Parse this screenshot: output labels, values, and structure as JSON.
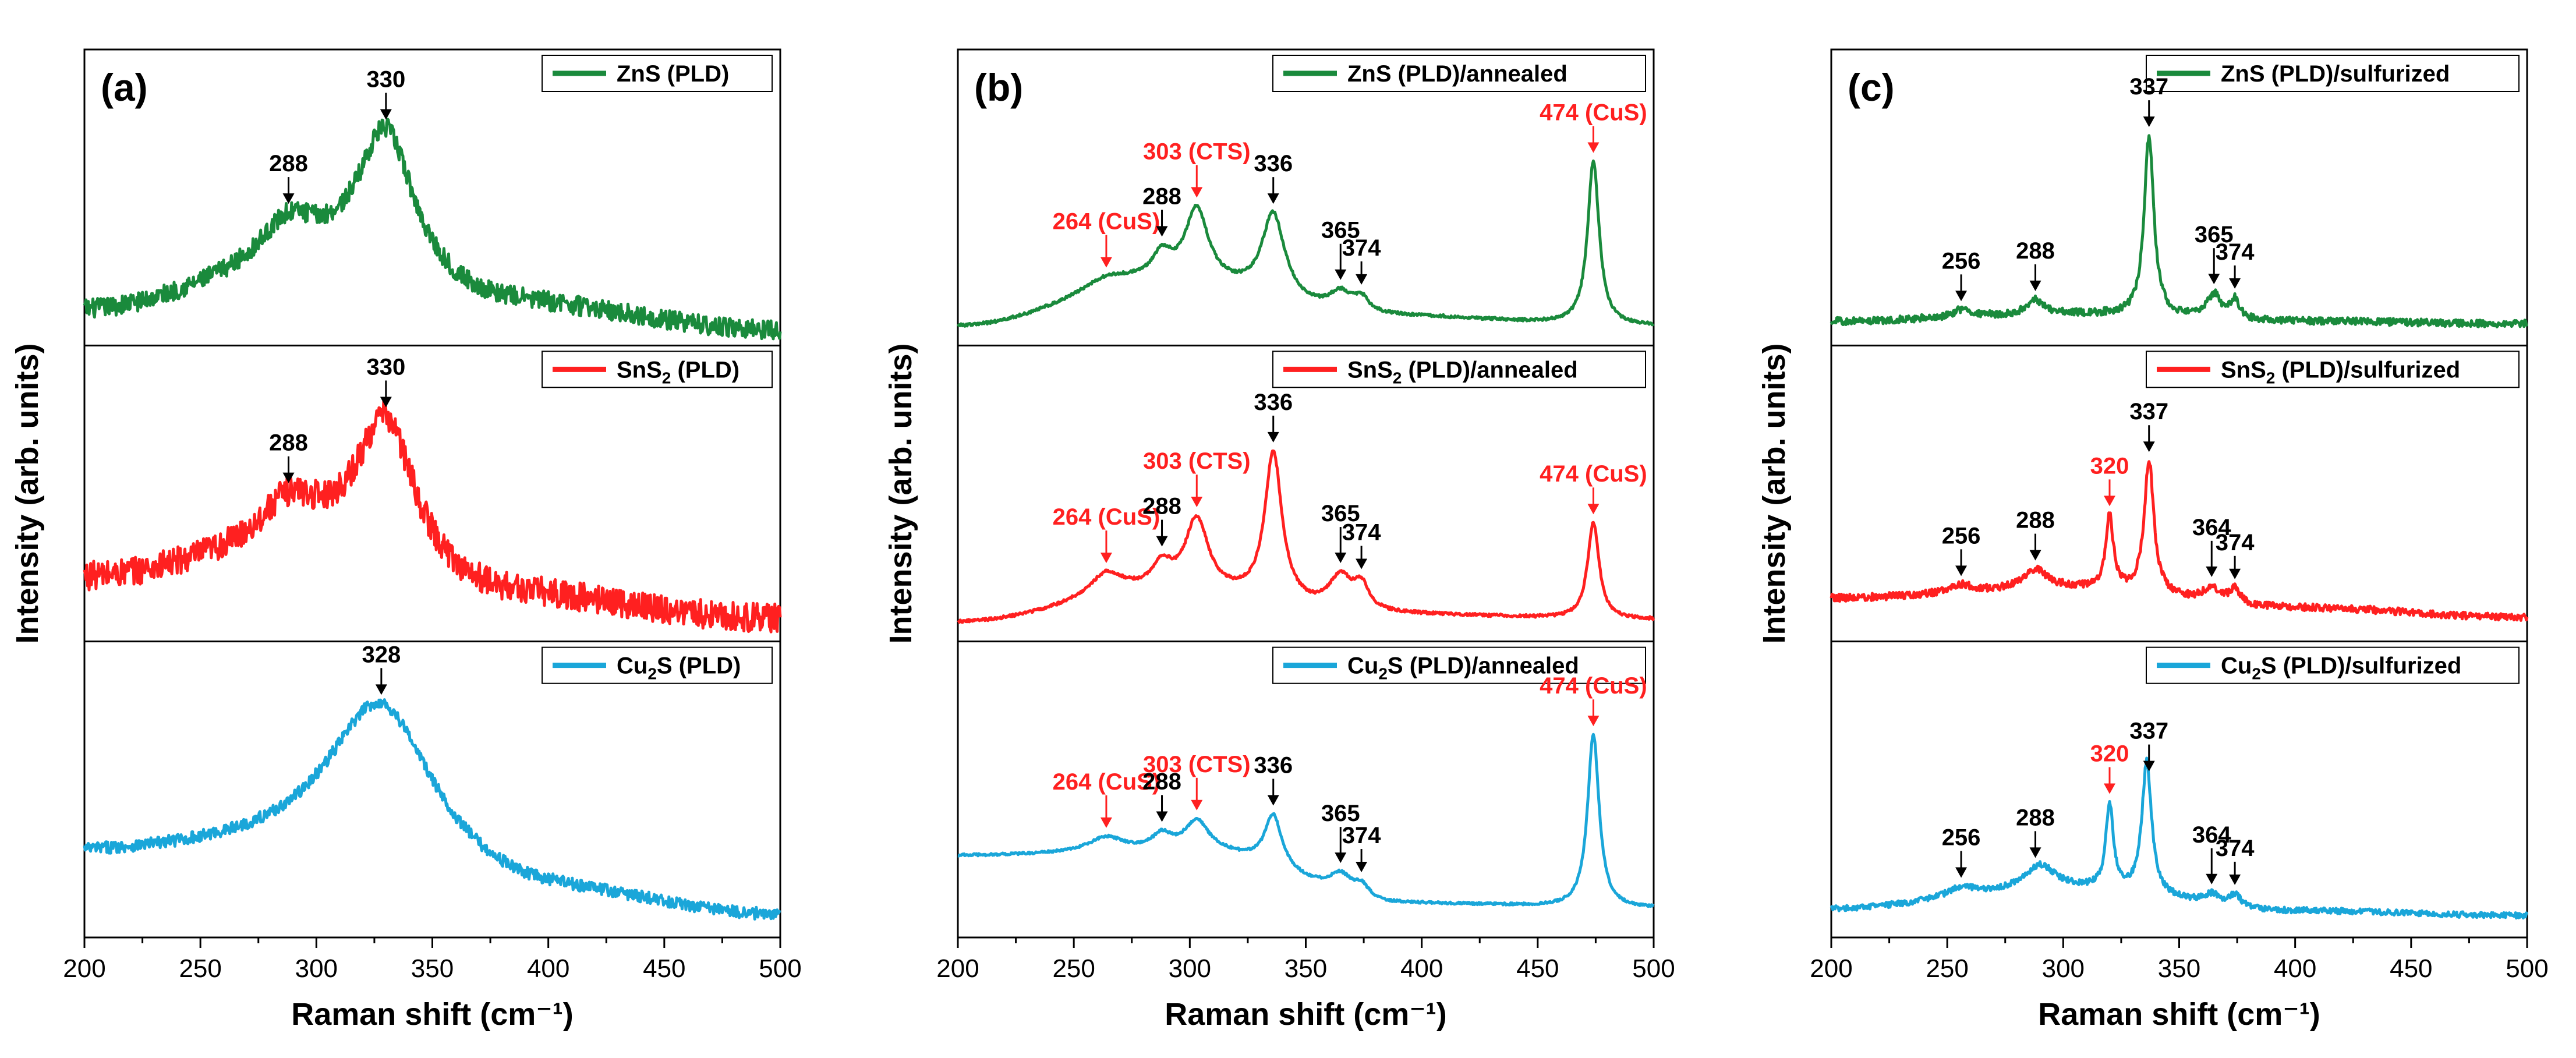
{
  "figure": {
    "xlabel": "Raman shift (cm⁻¹)",
    "ylabel": "Intensity (arb. units)",
    "x_ticks": [
      "200",
      "250",
      "300",
      "350",
      "400",
      "450",
      "500"
    ]
  },
  "colors": {
    "ZnS": "#1a8a3c",
    "SnS2": "#ff2020",
    "Cu2S": "#1aa6d9",
    "red_annotation": "#ff2020",
    "black_annotation": "#000000"
  },
  "chart_data": [
    {
      "type": "line",
      "panel": "(a)",
      "xlim": [
        200,
        500
      ],
      "xlabel": "Raman shift (cm⁻¹)",
      "ylabel": "Intensity (arb. units)",
      "subplots": [
        {
          "legend": "ZnS (PLD)",
          "legend_main": "ZnS",
          "legend_sub": "",
          "legend_tail": " (PLD)",
          "color_key": "ZnS",
          "peaks": [
            {
              "x": 288,
              "w": 30,
              "h": 0.18
            },
            {
              "x": 330,
              "w": 30,
              "h": 0.62
            }
          ],
          "baseline": [
            [
              200,
              0.08
            ],
            [
              300,
              0.25
            ],
            [
              380,
              0.1
            ],
            [
              500,
              0.0
            ]
          ],
          "noise": 0.04,
          "annotations": [
            {
              "label": "288",
              "x": 288,
              "color": "black"
            },
            {
              "label": "330",
              "x": 330,
              "color": "black"
            }
          ]
        },
        {
          "legend": "SnS2 (PLD)",
          "legend_main": "SnS",
          "legend_sub": "2",
          "legend_tail": " (PLD)",
          "color_key": "SnS2",
          "peaks": [
            {
              "x": 288,
              "w": 30,
              "h": 0.18
            },
            {
              "x": 330,
              "w": 30,
              "h": 0.6
            }
          ],
          "baseline": [
            [
              200,
              0.2
            ],
            [
              300,
              0.32
            ],
            [
              380,
              0.12
            ],
            [
              500,
              0.03
            ]
          ],
          "noise": 0.06,
          "annotations": [
            {
              "label": "288",
              "x": 288,
              "color": "black"
            },
            {
              "label": "330",
              "x": 330,
              "color": "black"
            }
          ]
        },
        {
          "legend": "Cu2S (PLD)",
          "legend_main": "Cu",
          "legend_sub": "2",
          "legend_tail": "S (PLD)",
          "color_key": "Cu2S",
          "peaks": [
            {
              "x": 328,
              "w": 55,
              "h": 0.65
            }
          ],
          "baseline": [
            [
              200,
              0.28
            ],
            [
              300,
              0.3
            ],
            [
              400,
              0.1
            ],
            [
              500,
              0.02
            ]
          ],
          "noise": 0.025,
          "annotations": [
            {
              "label": "328",
              "x": 328,
              "color": "black"
            }
          ]
        }
      ]
    },
    {
      "type": "line",
      "panel": "(b)",
      "xlim": [
        200,
        500
      ],
      "xlabel": "Raman shift (cm⁻¹)",
      "ylabel": "Intensity (arb. units)",
      "subplots": [
        {
          "legend": "ZnS (PLD)/annealed",
          "legend_main": "ZnS",
          "legend_sub": "",
          "legend_tail": " (PLD)/annealed",
          "color_key": "ZnS",
          "peaks": [
            {
              "x": 264,
              "w": 25,
              "h": 0.05
            },
            {
              "x": 288,
              "w": 10,
              "h": 0.1
            },
            {
              "x": 303,
              "w": 12,
              "h": 0.3
            },
            {
              "x": 336,
              "w": 12,
              "h": 0.35
            },
            {
              "x": 365,
              "w": 12,
              "h": 0.08
            },
            {
              "x": 374,
              "w": 8,
              "h": 0.06
            },
            {
              "x": 474,
              "w": 6,
              "h": 0.68
            }
          ],
          "baseline": [
            [
              200,
              0.02
            ],
            [
              290,
              0.2
            ],
            [
              380,
              0.06
            ],
            [
              500,
              0.02
            ]
          ],
          "noise": 0.006,
          "annotations": [
            {
              "label": "264 (CuS)",
              "x": 264,
              "color": "red"
            },
            {
              "label": "288",
              "x": 288,
              "color": "black"
            },
            {
              "label": "303 (CTS)",
              "x": 303,
              "color": "red"
            },
            {
              "label": "336",
              "x": 336,
              "color": "black"
            },
            {
              "label": "365",
              "x": 365,
              "color": "black"
            },
            {
              "label": "374",
              "x": 374,
              "color": "black"
            },
            {
              "label": "474 (CuS)",
              "x": 474,
              "color": "red"
            }
          ]
        },
        {
          "legend": "SnS2 (PLD)/annealed",
          "legend_main": "SnS",
          "legend_sub": "2",
          "legend_tail": " (PLD)/annealed",
          "color_key": "SnS2",
          "peaks": [
            {
              "x": 264,
              "w": 18,
              "h": 0.1
            },
            {
              "x": 288,
              "w": 10,
              "h": 0.1
            },
            {
              "x": 303,
              "w": 12,
              "h": 0.3
            },
            {
              "x": 336,
              "w": 9,
              "h": 0.62
            },
            {
              "x": 365,
              "w": 12,
              "h": 0.14
            },
            {
              "x": 374,
              "w": 8,
              "h": 0.1
            },
            {
              "x": 474,
              "w": 6,
              "h": 0.4
            }
          ],
          "baseline": [
            [
              200,
              0.02
            ],
            [
              290,
              0.14
            ],
            [
              380,
              0.05
            ],
            [
              500,
              0.03
            ]
          ],
          "noise": 0.006,
          "annotations": [
            {
              "label": "264 (CuS)",
              "x": 264,
              "color": "red"
            },
            {
              "label": "288",
              "x": 288,
              "color": "black"
            },
            {
              "label": "303 (CTS)",
              "x": 303,
              "color": "red"
            },
            {
              "label": "336",
              "x": 336,
              "color": "black"
            },
            {
              "label": "365",
              "x": 365,
              "color": "black"
            },
            {
              "label": "374",
              "x": 374,
              "color": "black"
            },
            {
              "label": "474 (CuS)",
              "x": 474,
              "color": "red"
            }
          ]
        },
        {
          "legend": "Cu2S (PLD)/annealed",
          "legend_main": "Cu",
          "legend_sub": "2",
          "legend_tail": "S (PLD)/annealed",
          "color_key": "Cu2S",
          "peaks": [
            {
              "x": 264,
              "w": 18,
              "h": 0.06
            },
            {
              "x": 288,
              "w": 10,
              "h": 0.06
            },
            {
              "x": 303,
              "w": 12,
              "h": 0.12
            },
            {
              "x": 336,
              "w": 9,
              "h": 0.22
            },
            {
              "x": 365,
              "w": 12,
              "h": 0.08
            },
            {
              "x": 374,
              "w": 8,
              "h": 0.05
            },
            {
              "x": 474,
              "w": 6,
              "h": 0.72
            }
          ],
          "baseline": [
            [
              200,
              0.28
            ],
            [
              300,
              0.3
            ],
            [
              390,
              0.08
            ],
            [
              500,
              0.06
            ]
          ],
          "noise": 0.005,
          "annotations": [
            {
              "label": "264 (CuS)",
              "x": 264,
              "color": "red"
            },
            {
              "label": "288",
              "x": 288,
              "color": "black"
            },
            {
              "label": "303 (CTS)",
              "x": 303,
              "color": "red"
            },
            {
              "label": "336",
              "x": 336,
              "color": "black"
            },
            {
              "label": "365",
              "x": 365,
              "color": "black"
            },
            {
              "label": "374",
              "x": 374,
              "color": "black"
            },
            {
              "label": "474 (CuS)",
              "x": 474,
              "color": "red"
            }
          ]
        }
      ]
    },
    {
      "type": "line",
      "panel": "(c)",
      "xlim": [
        200,
        500
      ],
      "xlabel": "Raman shift (cm⁻¹)",
      "ylabel": "Intensity (arb. units)",
      "subplots": [
        {
          "legend": "ZnS (PLD)/sulfurized",
          "legend_main": "ZnS",
          "legend_sub": "",
          "legend_tail": " (PLD)/sulfurized",
          "color_key": "ZnS",
          "peaks": [
            {
              "x": 256,
              "w": 8,
              "h": 0.03
            },
            {
              "x": 288,
              "w": 8,
              "h": 0.06
            },
            {
              "x": 337,
              "w": 5,
              "h": 0.75
            },
            {
              "x": 365,
              "w": 7,
              "h": 0.1
            },
            {
              "x": 374,
              "w": 5,
              "h": 0.08
            }
          ],
          "baseline": [
            [
              200,
              0.04
            ],
            [
              300,
              0.07
            ],
            [
              400,
              0.04
            ],
            [
              500,
              0.03
            ]
          ],
          "noise": 0.015,
          "annotations": [
            {
              "label": "256",
              "x": 256,
              "color": "black"
            },
            {
              "label": "288",
              "x": 288,
              "color": "black"
            },
            {
              "label": "337",
              "x": 337,
              "color": "black"
            },
            {
              "label": "365",
              "x": 365,
              "color": "black"
            },
            {
              "label": "374",
              "x": 374,
              "color": "black"
            }
          ]
        },
        {
          "legend": "SnS2 (PLD)/sulfurized",
          "legend_main": "SnS",
          "legend_sub": "2",
          "legend_tail": " (PLD)/sulfurized",
          "color_key": "SnS2",
          "peaks": [
            {
              "x": 256,
              "w": 10,
              "h": 0.03
            },
            {
              "x": 288,
              "w": 12,
              "h": 0.08
            },
            {
              "x": 320,
              "w": 4,
              "h": 0.3
            },
            {
              "x": 337,
              "w": 5,
              "h": 0.55
            },
            {
              "x": 364,
              "w": 8,
              "h": 0.06
            },
            {
              "x": 374,
              "w": 6,
              "h": 0.06
            }
          ],
          "baseline": [
            [
              200,
              0.12
            ],
            [
              300,
              0.16
            ],
            [
              400,
              0.08
            ],
            [
              500,
              0.04
            ]
          ],
          "noise": 0.015,
          "annotations": [
            {
              "label": "256",
              "x": 256,
              "color": "black"
            },
            {
              "label": "288",
              "x": 288,
              "color": "black"
            },
            {
              "label": "320",
              "x": 320,
              "color": "red"
            },
            {
              "label": "337",
              "x": 337,
              "color": "black"
            },
            {
              "label": "364",
              "x": 364,
              "color": "black"
            },
            {
              "label": "374",
              "x": 374,
              "color": "black"
            }
          ]
        },
        {
          "legend": "Cu2S (PLD)/sulfurized",
          "legend_main": "Cu",
          "legend_sub": "2",
          "legend_tail": "S (PLD)/sulfurized",
          "color_key": "Cu2S",
          "peaks": [
            {
              "x": 256,
              "w": 14,
              "h": 0.04
            },
            {
              "x": 290,
              "w": 16,
              "h": 0.1
            },
            {
              "x": 320,
              "w": 4,
              "h": 0.35
            },
            {
              "x": 336,
              "w": 5,
              "h": 0.55
            },
            {
              "x": 364,
              "w": 8,
              "h": 0.04
            },
            {
              "x": 374,
              "w": 6,
              "h": 0.05
            }
          ],
          "baseline": [
            [
              200,
              0.06
            ],
            [
              300,
              0.14
            ],
            [
              400,
              0.05
            ],
            [
              500,
              0.03
            ]
          ],
          "noise": 0.012,
          "annotations": [
            {
              "label": "256",
              "x": 256,
              "color": "black"
            },
            {
              "label": "288",
              "x": 288,
              "color": "black"
            },
            {
              "label": "320",
              "x": 320,
              "color": "red"
            },
            {
              "label": "337",
              "x": 337,
              "color": "black"
            },
            {
              "label": "364",
              "x": 364,
              "color": "black"
            },
            {
              "label": "374",
              "x": 374,
              "color": "black"
            }
          ]
        }
      ]
    }
  ]
}
